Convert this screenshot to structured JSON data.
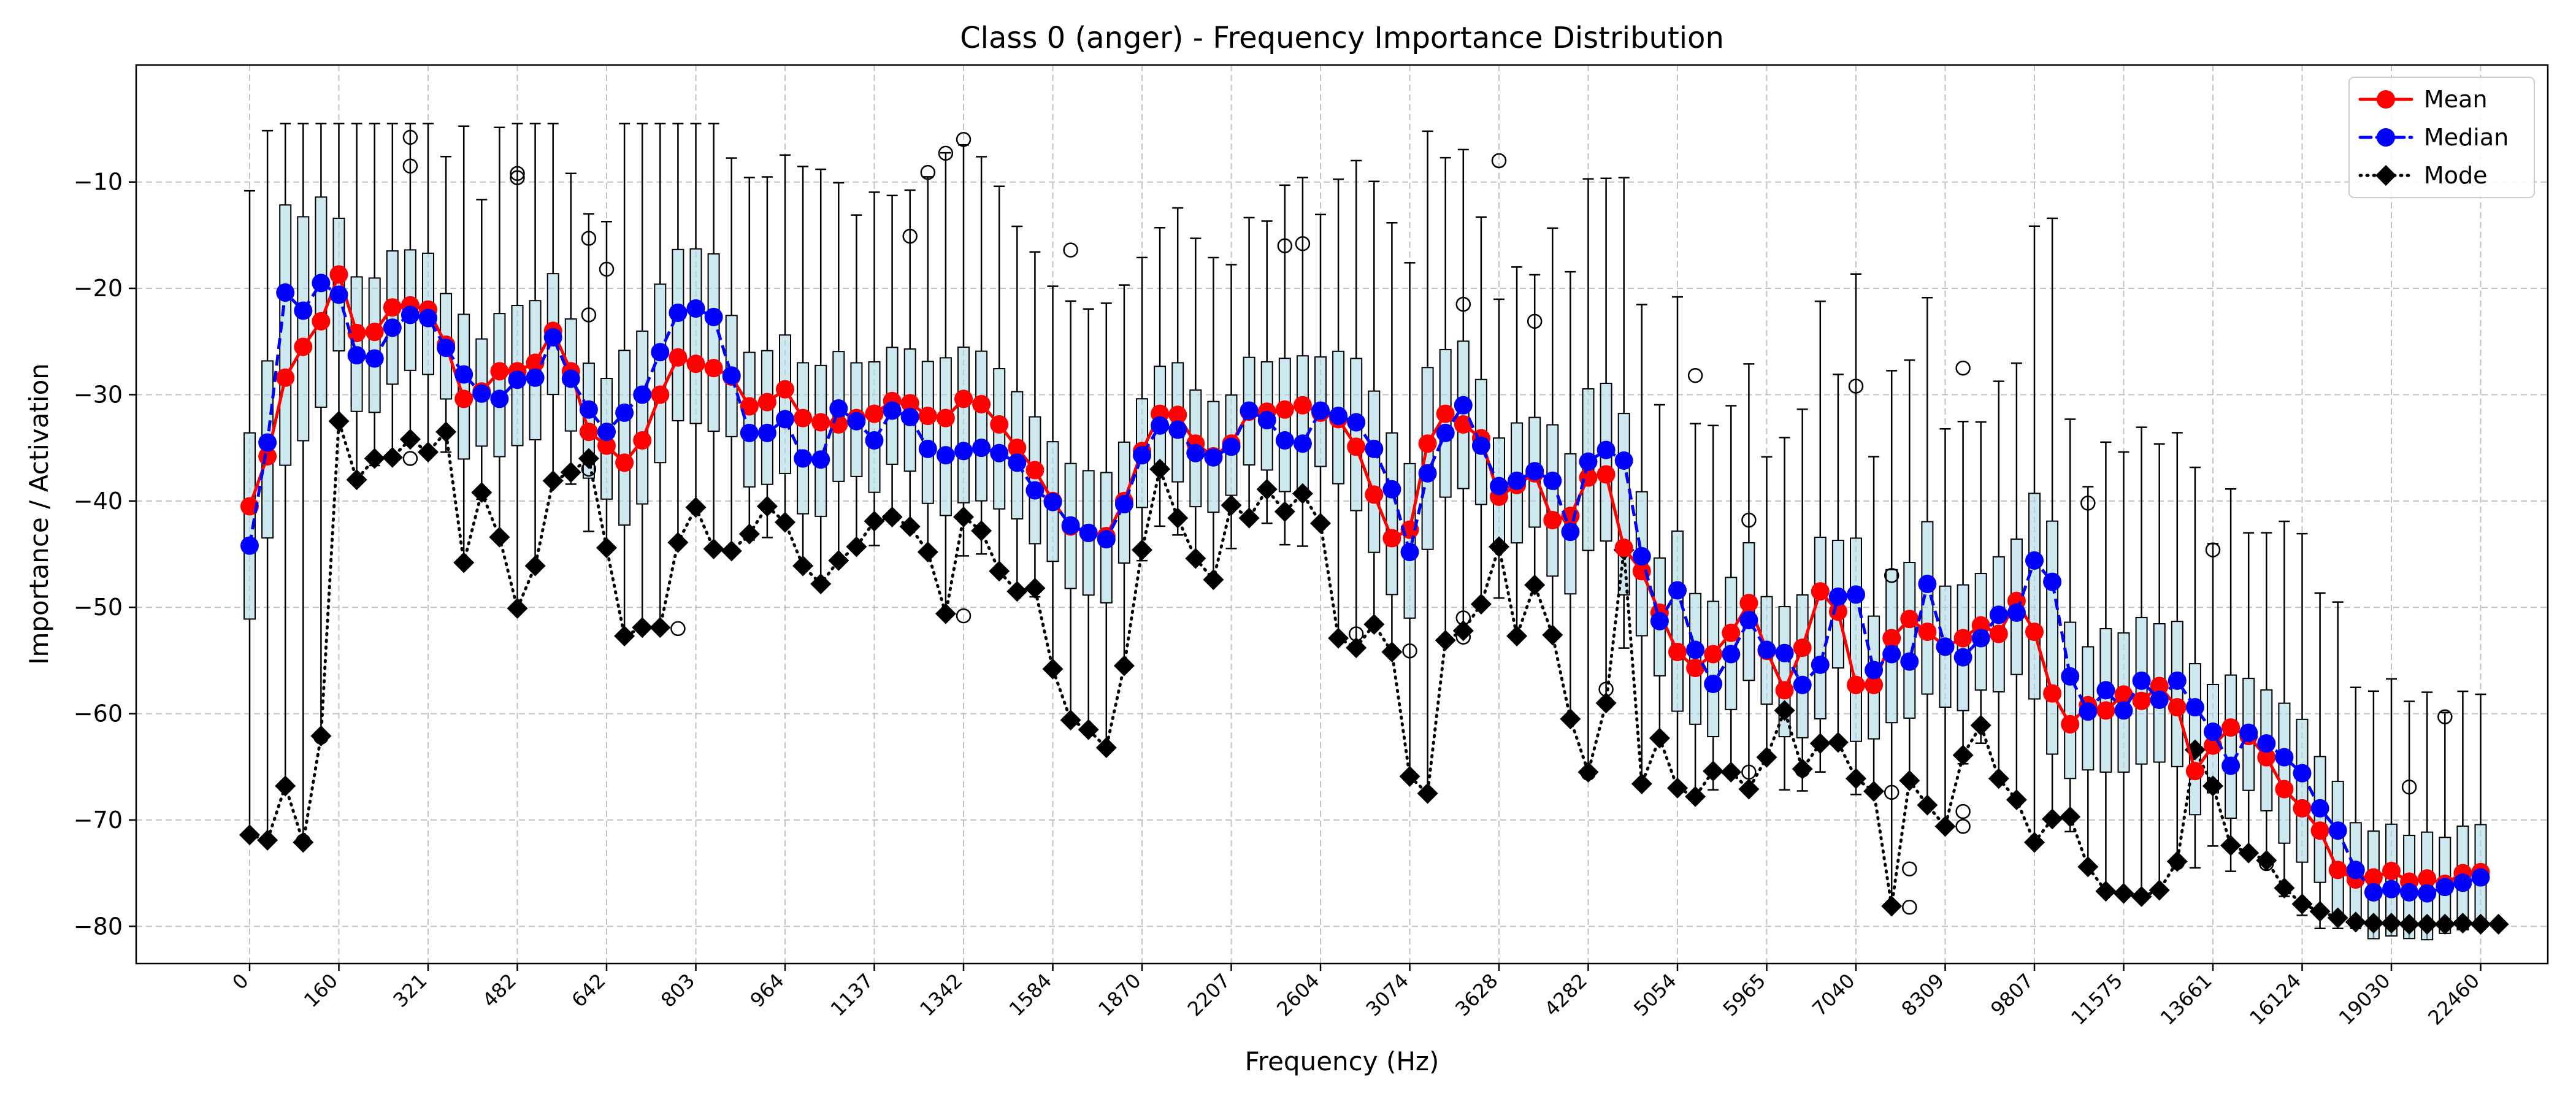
{
  "chart_data": {
    "type": "box",
    "title": "Class 0 (anger) - Frequency Importance Distribution",
    "xlabel": "Frequency (Hz)",
    "ylabel": "Importance / Activation",
    "ylim": [
      -83.5,
      1
    ],
    "y_ticks": [
      -80,
      -70,
      -60,
      -50,
      -40,
      -30,
      -20,
      -10
    ],
    "x_tick_labels": [
      "0",
      "160",
      "321",
      "482",
      "642",
      "803",
      "964",
      "1137",
      "1342",
      "1584",
      "1870",
      "2207",
      "2604",
      "3074",
      "3628",
      "4282",
      "5054",
      "5965",
      "7040",
      "8309",
      "9807",
      "11575",
      "13661",
      "16124",
      "19030",
      "22460"
    ],
    "x_tick_every": 5,
    "grid": true,
    "legend_position": "top-right",
    "colors": {
      "mean": "#ff0000",
      "median": "#0000ff",
      "mode": "#000000",
      "box_fill": "#add8e6",
      "box_median_line": "#ff7f0e"
    },
    "series": [
      {
        "name": "Mean",
        "values": [
          -40.5,
          -35.8,
          -28.4,
          -25.5,
          -23.1,
          -18.7,
          -24.2,
          -24.1,
          -21.8,
          -21.6,
          -22.0,
          -25.3,
          -30.4,
          -29.7,
          -27.8,
          -27.8,
          -27.0,
          -24.0,
          -27.8,
          -33.5,
          -34.8,
          -36.4,
          -34.3,
          -30.0,
          -26.5,
          -27.1,
          -27.5,
          -28.3,
          -31.1,
          -30.7,
          -29.5,
          -32.2,
          -32.6,
          -32.8,
          -32.2,
          -31.8,
          -30.6,
          -30.8,
          -32.0,
          -32.2,
          -30.4,
          -30.9,
          -32.8,
          -35.0,
          -37.1,
          -40.0,
          -42.4,
          -43.0,
          -43.3,
          -40.0,
          -35.3,
          -31.8,
          -31.9,
          -34.6,
          -35.8,
          -34.6,
          -31.6,
          -31.6,
          -31.4,
          -31.0,
          -31.7,
          -32.3,
          -34.9,
          -39.4,
          -43.5,
          -42.7,
          -34.6,
          -31.8,
          -32.8,
          -34.1,
          -39.6,
          -38.5,
          -37.4,
          -41.8,
          -41.4,
          -37.8,
          -37.5,
          -44.4,
          -46.6,
          -50.5,
          -54.2,
          -55.7,
          -54.4,
          -52.4,
          -49.6,
          -54.1,
          -57.8,
          -53.8,
          -48.5,
          -50.4,
          -57.3,
          -57.3,
          -52.9,
          -51.1,
          -52.3,
          -53.7,
          -52.9,
          -51.7,
          -52.5,
          -49.4,
          -52.3,
          -58.1,
          -61.0,
          -59.2,
          -59.7,
          -58.2,
          -58.8,
          -57.4,
          -59.4,
          -65.4,
          -63.0,
          -61.3,
          -62.1,
          -64.1,
          -67.1,
          -68.9,
          -71.0,
          -74.7,
          -75.6,
          -75.4,
          -74.8,
          -75.8,
          -75.5,
          -76.0,
          -75.0,
          -74.9
        ]
      },
      {
        "name": "Median",
        "values": [
          -44.2,
          -34.5,
          -20.4,
          -22.1,
          -19.5,
          -20.6,
          -26.3,
          -26.6,
          -23.7,
          -22.5,
          -22.8,
          -25.6,
          -28.1,
          -29.9,
          -30.4,
          -28.6,
          -28.4,
          -24.6,
          -28.5,
          -31.4,
          -33.5,
          -31.7,
          -30.0,
          -26.0,
          -22.3,
          -21.9,
          -22.7,
          -28.2,
          -33.6,
          -33.6,
          -32.3,
          -36.0,
          -36.1,
          -31.3,
          -32.5,
          -34.3,
          -31.5,
          -32.1,
          -35.1,
          -35.7,
          -35.3,
          -35.0,
          -35.5,
          -36.4,
          -39.0,
          -40.1,
          -42.3,
          -43.0,
          -43.6,
          -40.3,
          -35.7,
          -32.9,
          -33.3,
          -35.5,
          -35.9,
          -34.9,
          -31.5,
          -32.4,
          -34.3,
          -34.6,
          -31.5,
          -32.0,
          -32.6,
          -35.1,
          -38.9,
          -44.8,
          -37.4,
          -33.6,
          -31.0,
          -34.8,
          -38.6,
          -38.1,
          -37.2,
          -38.1,
          -42.9,
          -36.3,
          -35.2,
          -36.2,
          -45.2,
          -51.3,
          -48.4,
          -54.0,
          -57.2,
          -54.4,
          -51.2,
          -54.0,
          -54.3,
          -57.3,
          -55.4,
          -49.0,
          -48.8,
          -55.9,
          -54.4,
          -55.1,
          -47.8,
          -53.7,
          -54.7,
          -52.9,
          -50.7,
          -50.5,
          -45.6,
          -47.6,
          -56.5,
          -59.8,
          -57.8,
          -59.7,
          -56.9,
          -58.7,
          -56.9,
          -59.4,
          -61.7,
          -64.9,
          -61.8,
          -62.8,
          -64.1,
          -65.6,
          -68.9,
          -71.0,
          -74.7,
          -76.8,
          -76.5,
          -76.8,
          -76.9,
          -76.3,
          -75.9,
          -75.4
        ]
      },
      {
        "name": "Mode",
        "values": [
          -71.4,
          -71.9,
          -66.8,
          -72.1,
          -62.1,
          -32.5,
          -38.0,
          -36.0,
          -35.9,
          -34.2,
          -35.4,
          -33.5,
          -45.8,
          -39.2,
          -43.4,
          -50.1,
          -46.1,
          -38.1,
          -37.3,
          -36.0,
          -44.4,
          -52.7,
          -51.9,
          -51.9,
          -43.9,
          -40.6,
          -44.5,
          -44.7,
          -43.1,
          -40.5,
          -42.0,
          -46.1,
          -47.8,
          -45.6,
          -44.3,
          -41.9,
          -41.5,
          -42.4,
          -44.8,
          -50.6,
          -41.5,
          -42.8,
          -46.6,
          -48.5,
          -48.2,
          -55.8,
          -60.6,
          -61.5,
          -63.2,
          -55.5,
          -44.6,
          -37.0,
          -41.6,
          -45.4,
          -47.4,
          -40.4,
          -41.6,
          -38.9,
          -41.0,
          -39.3,
          -42.1,
          -52.9,
          -53.8,
          -51.6,
          -54.2,
          -65.9,
          -67.5,
          -53.1,
          -52.2,
          -49.7,
          -44.3,
          -52.7,
          -47.9,
          -52.6,
          -60.5,
          -65.5,
          -59.0,
          -44.6,
          -66.6,
          -62.3,
          -67.0,
          -67.8,
          -65.4,
          -65.5,
          -67.1,
          -64.1,
          -59.7,
          -65.2,
          -62.8,
          -62.7,
          -66.1,
          -67.3,
          -78.1,
          -66.3,
          -68.6,
          -70.6,
          -63.9,
          -61.1,
          -66.1,
          -68.1,
          -72.1,
          -69.9,
          -69.7,
          -74.4,
          -76.7,
          -76.9,
          -77.2,
          -76.6,
          -73.9,
          -63.4,
          -66.8,
          -72.4,
          -73.1,
          -73.8,
          -76.4,
          -77.9,
          -78.6,
          -79.2,
          -79.6,
          -79.7,
          -79.7,
          -79.8,
          -79.8,
          -79.8,
          -79.7,
          -79.8,
          -79.8
        ]
      }
    ],
    "legend_entries": [
      "Mean",
      "Median",
      "Mode"
    ],
    "outliers": [
      {
        "i": 2,
        "y": -66.8
      },
      {
        "i": 3,
        "y": -72.0
      },
      {
        "i": 4,
        "y": -62.2
      },
      {
        "i": 9,
        "y": -5.8
      },
      {
        "i": 9,
        "y": -8.5
      },
      {
        "i": 9,
        "y": -36.0
      },
      {
        "i": 15,
        "y": -9.2
      },
      {
        "i": 15,
        "y": -9.6
      },
      {
        "i": 19,
        "y": -15.3
      },
      {
        "i": 19,
        "y": -22.5
      },
      {
        "i": 19,
        "y": -37.0
      },
      {
        "i": 20,
        "y": -18.2
      },
      {
        "i": 24,
        "y": -52.0
      },
      {
        "i": 37,
        "y": -15.1
      },
      {
        "i": 38,
        "y": -9.1
      },
      {
        "i": 39,
        "y": -7.3
      },
      {
        "i": 40,
        "y": -6.0
      },
      {
        "i": 40,
        "y": -50.8
      },
      {
        "i": 46,
        "y": -16.4
      },
      {
        "i": 58,
        "y": -16.0
      },
      {
        "i": 59,
        "y": -15.8
      },
      {
        "i": 62,
        "y": -52.5
      },
      {
        "i": 65,
        "y": -54.1
      },
      {
        "i": 68,
        "y": -21.5
      },
      {
        "i": 68,
        "y": -51.0
      },
      {
        "i": 68,
        "y": -52.8
      },
      {
        "i": 70,
        "y": -8.0
      },
      {
        "i": 72,
        "y": -23.1
      },
      {
        "i": 75,
        "y": -65.6
      },
      {
        "i": 76,
        "y": -57.7
      },
      {
        "i": 76,
        "y": -59.0
      },
      {
        "i": 81,
        "y": -28.2
      },
      {
        "i": 84,
        "y": -41.8
      },
      {
        "i": 84,
        "y": -65.5
      },
      {
        "i": 87,
        "y": -65.3
      },
      {
        "i": 90,
        "y": -29.2
      },
      {
        "i": 92,
        "y": -47.0
      },
      {
        "i": 92,
        "y": -67.4
      },
      {
        "i": 93,
        "y": -74.6
      },
      {
        "i": 93,
        "y": -78.2
      },
      {
        "i": 96,
        "y": -27.5
      },
      {
        "i": 96,
        "y": -69.2
      },
      {
        "i": 96,
        "y": -70.6
      },
      {
        "i": 103,
        "y": -40.2
      },
      {
        "i": 108,
        "y": -74.0
      },
      {
        "i": 110,
        "y": -44.6
      },
      {
        "i": 113,
        "y": -74.1
      },
      {
        "i": 121,
        "y": -66.9
      },
      {
        "i": 123,
        "y": -60.3
      }
    ]
  }
}
